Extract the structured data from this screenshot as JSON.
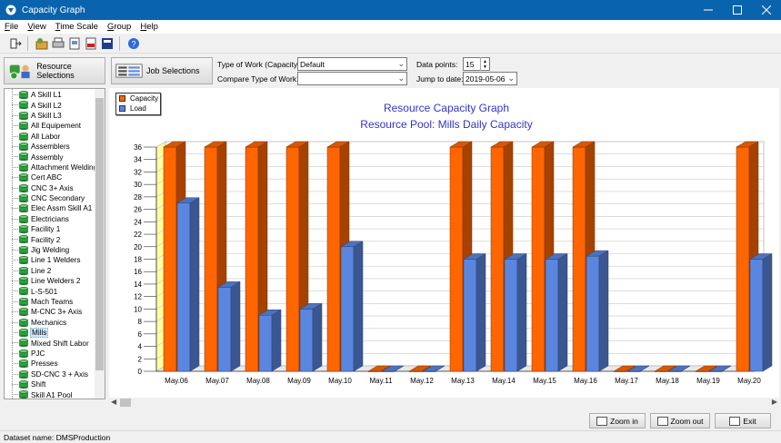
{
  "window": {
    "title": "Capacity Graph"
  },
  "menu": [
    {
      "key": "F",
      "rest": "ile"
    },
    {
      "key": "V",
      "rest": "iew"
    },
    {
      "key": "T",
      "rest": "ime Scale"
    },
    {
      "key": "G",
      "rest": "roup"
    },
    {
      "key": "H",
      "rest": "elp"
    }
  ],
  "toolbar_icons": [
    "exit-icon",
    "tools-icon",
    "print-icon",
    "print-preview-icon",
    "pdf-icon",
    "export-icon",
    "help-icon"
  ],
  "buttons": {
    "resource_selections": "Resource Selections",
    "job_selections": "Job Selections",
    "zoom_in": "Zoom in",
    "zoom_out": "Zoom out",
    "exit": "Exit"
  },
  "controls": {
    "type_of_work_label": "Type of Work (Capacity):",
    "type_of_work_value": "Default",
    "compare_label": "Compare Type of Work:",
    "compare_value": "",
    "data_points_label": "Data points:",
    "data_points_value": "15",
    "jump_label": "Jump to date:",
    "jump_value": "2019-05-06"
  },
  "resources": [
    "A Skill L1",
    "A Skill L2",
    "A Skill L3",
    "All Equipement",
    "All Labor",
    "Assemblers",
    "Assembly",
    "Attachment Welding",
    "Cert ABC",
    "CNC 3+ Axis",
    "CNC Secondary",
    "Elec Assm Skill A1",
    "Electricians",
    "Facility 1",
    "Facility 2",
    "Jig Welding",
    "Line 1 Welders",
    "Line 2",
    "Line Welders 2",
    "L-S-501",
    "Mach Teams",
    "M-CNC 3+ Axis",
    "Mechanics",
    "Mills",
    "Mixed Shift Labor",
    "PJC",
    "Presses",
    "SD-CNC 3 + Axis",
    "Shift",
    "Skill A1 Pool"
  ],
  "selected_resource": "Mills",
  "colors": {
    "capacity": "#ff6600",
    "load": "#5b86e0",
    "title": "#3333cc",
    "floor": "#ffffa0"
  },
  "chart_data": {
    "type": "bar",
    "title": "Resource Capacity Graph",
    "subtitle": "Resource Pool: Mills Daily Capacity",
    "categories": [
      "May.06",
      "May.07",
      "May.08",
      "May.09",
      "May.10",
      "May.11",
      "May.12",
      "May.13",
      "May.14",
      "May.15",
      "May.16",
      "May.17",
      "May.18",
      "May.19",
      "May.20"
    ],
    "series": [
      {
        "name": "Capacity",
        "values": [
          36,
          36,
          36,
          36,
          36,
          0,
          0,
          36,
          36,
          36,
          36,
          0,
          0,
          0,
          36
        ]
      },
      {
        "name": "Load",
        "values": [
          27,
          13.5,
          9,
          10,
          20,
          0,
          0,
          18,
          18,
          18,
          18.5,
          0,
          0,
          0,
          18
        ]
      }
    ],
    "yticks": [
      "0",
      "2",
      "4",
      "6",
      "8",
      "10",
      "12",
      "14",
      "16",
      "18",
      "20",
      "22",
      "24",
      "26",
      "28",
      "30",
      "32",
      "34",
      "36"
    ],
    "ylim": [
      0,
      36
    ],
    "grid": true,
    "legend": "top-left"
  },
  "status": {
    "dataset": "Dataset name:  DMSProduction"
  }
}
